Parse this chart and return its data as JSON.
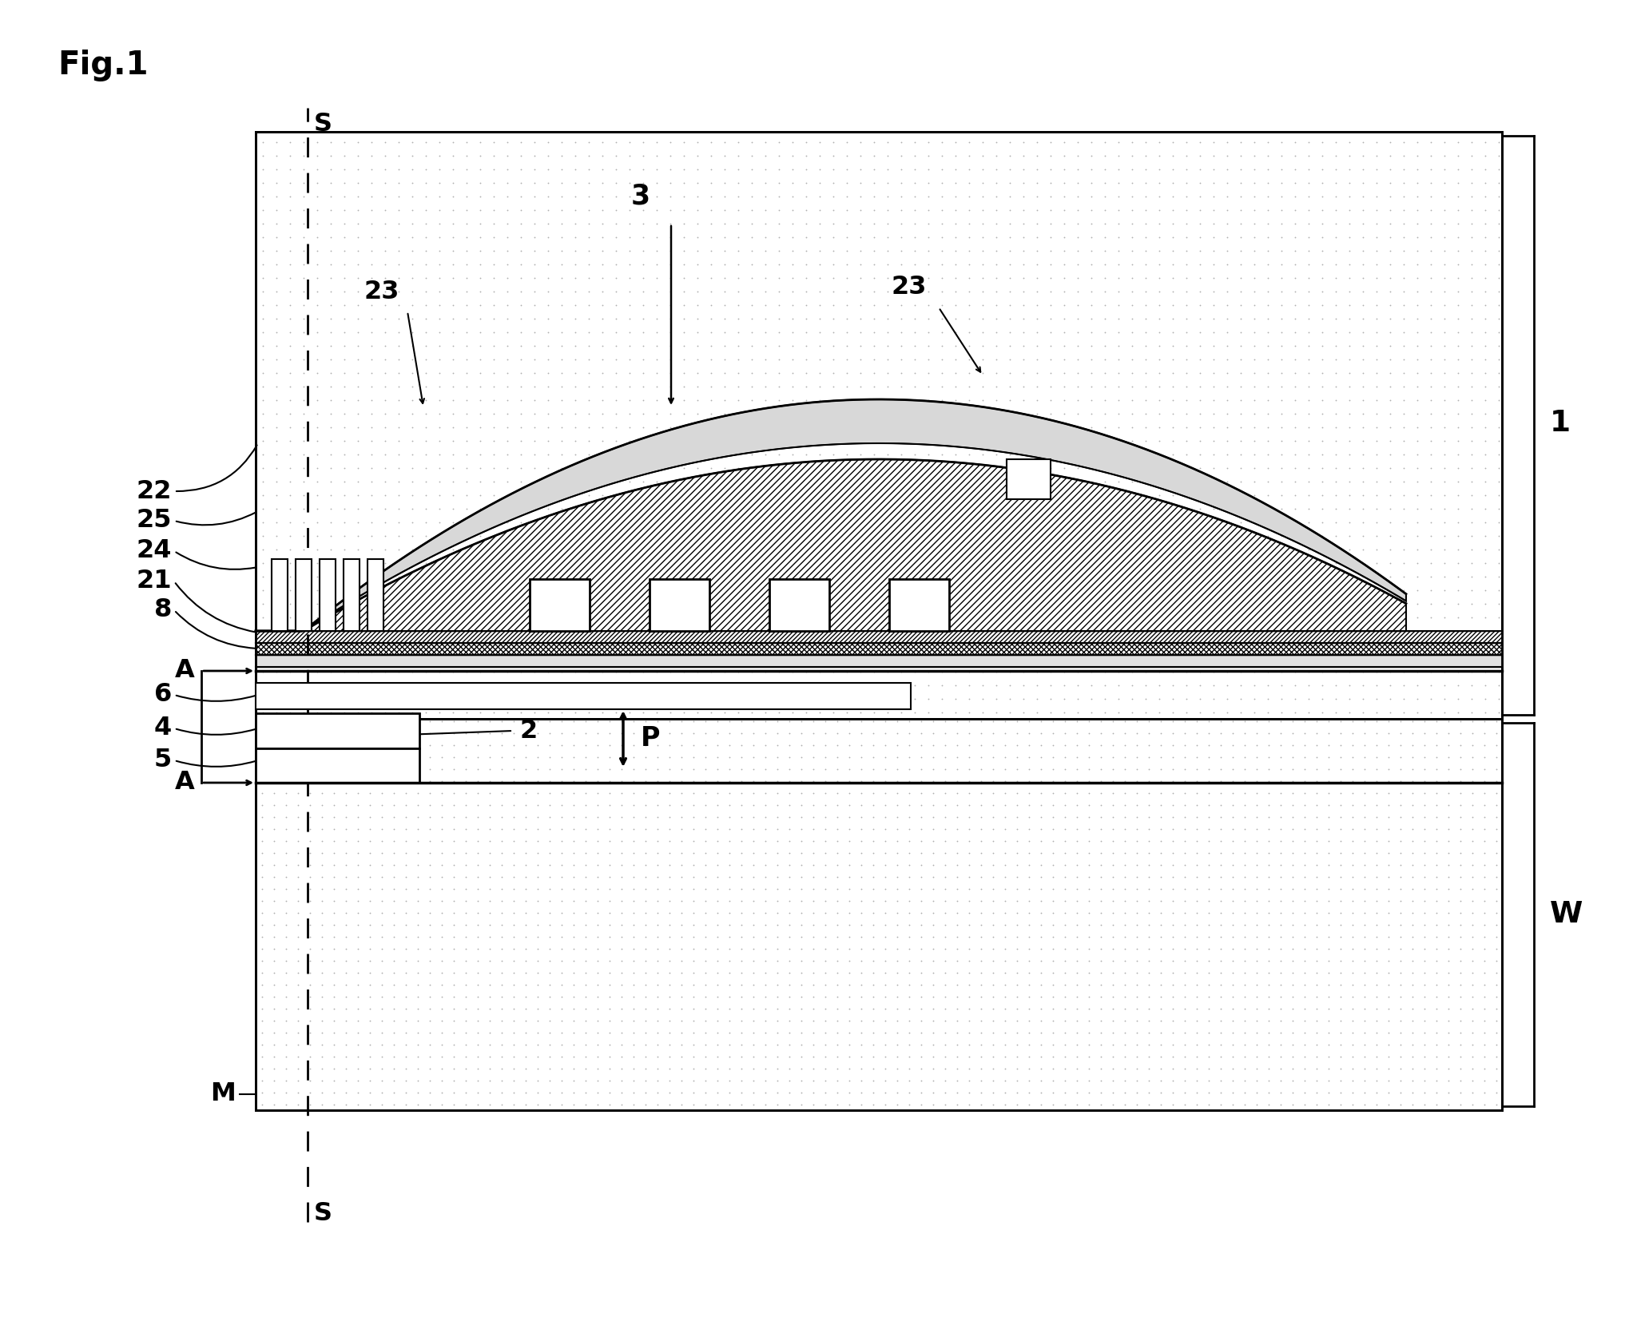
{
  "fig_label": "Fig.1",
  "bg_color": "#ffffff",
  "label_1": "1",
  "label_W": "W",
  "label_S_top": "S",
  "label_S_bot": "S",
  "label_M": "M",
  "label_2": "2",
  "label_3": "3",
  "label_4": "4",
  "label_5": "5",
  "label_6": "6",
  "label_8": "8",
  "label_21": "21",
  "label_22": "22",
  "label_23a": "23",
  "label_23b": "23",
  "label_24": "24",
  "label_25": "25",
  "label_A_top": "A",
  "label_A_bot": "A",
  "label_P": "P"
}
